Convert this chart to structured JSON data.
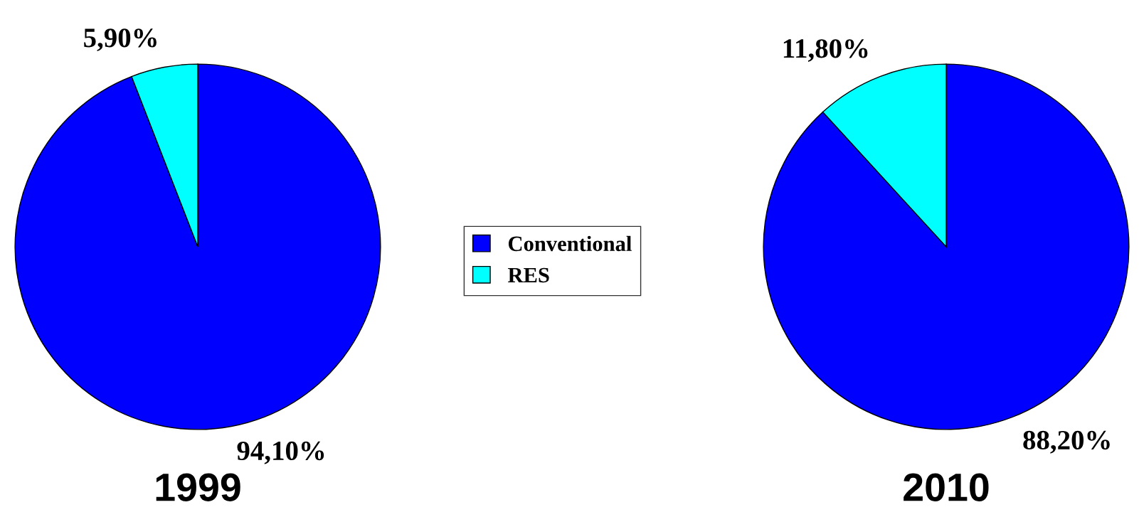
{
  "chart_data": [
    {
      "type": "pie",
      "title": "1999",
      "categories": [
        "Conventional",
        "RES"
      ],
      "values": [
        94.1,
        5.9
      ],
      "colors": [
        "#0000ff",
        "#00ffff"
      ],
      "value_labels": [
        "94,10%",
        "5,90%"
      ],
      "legend": "right"
    },
    {
      "type": "pie",
      "title": "2010",
      "categories": [
        null,
        null
      ],
      "values": [
        88.2,
        11.8
      ],
      "colors": [
        "#0000ff",
        "#00ffff"
      ],
      "value_labels": [
        "88,20%",
        "11,80%"
      ]
    }
  ]
}
